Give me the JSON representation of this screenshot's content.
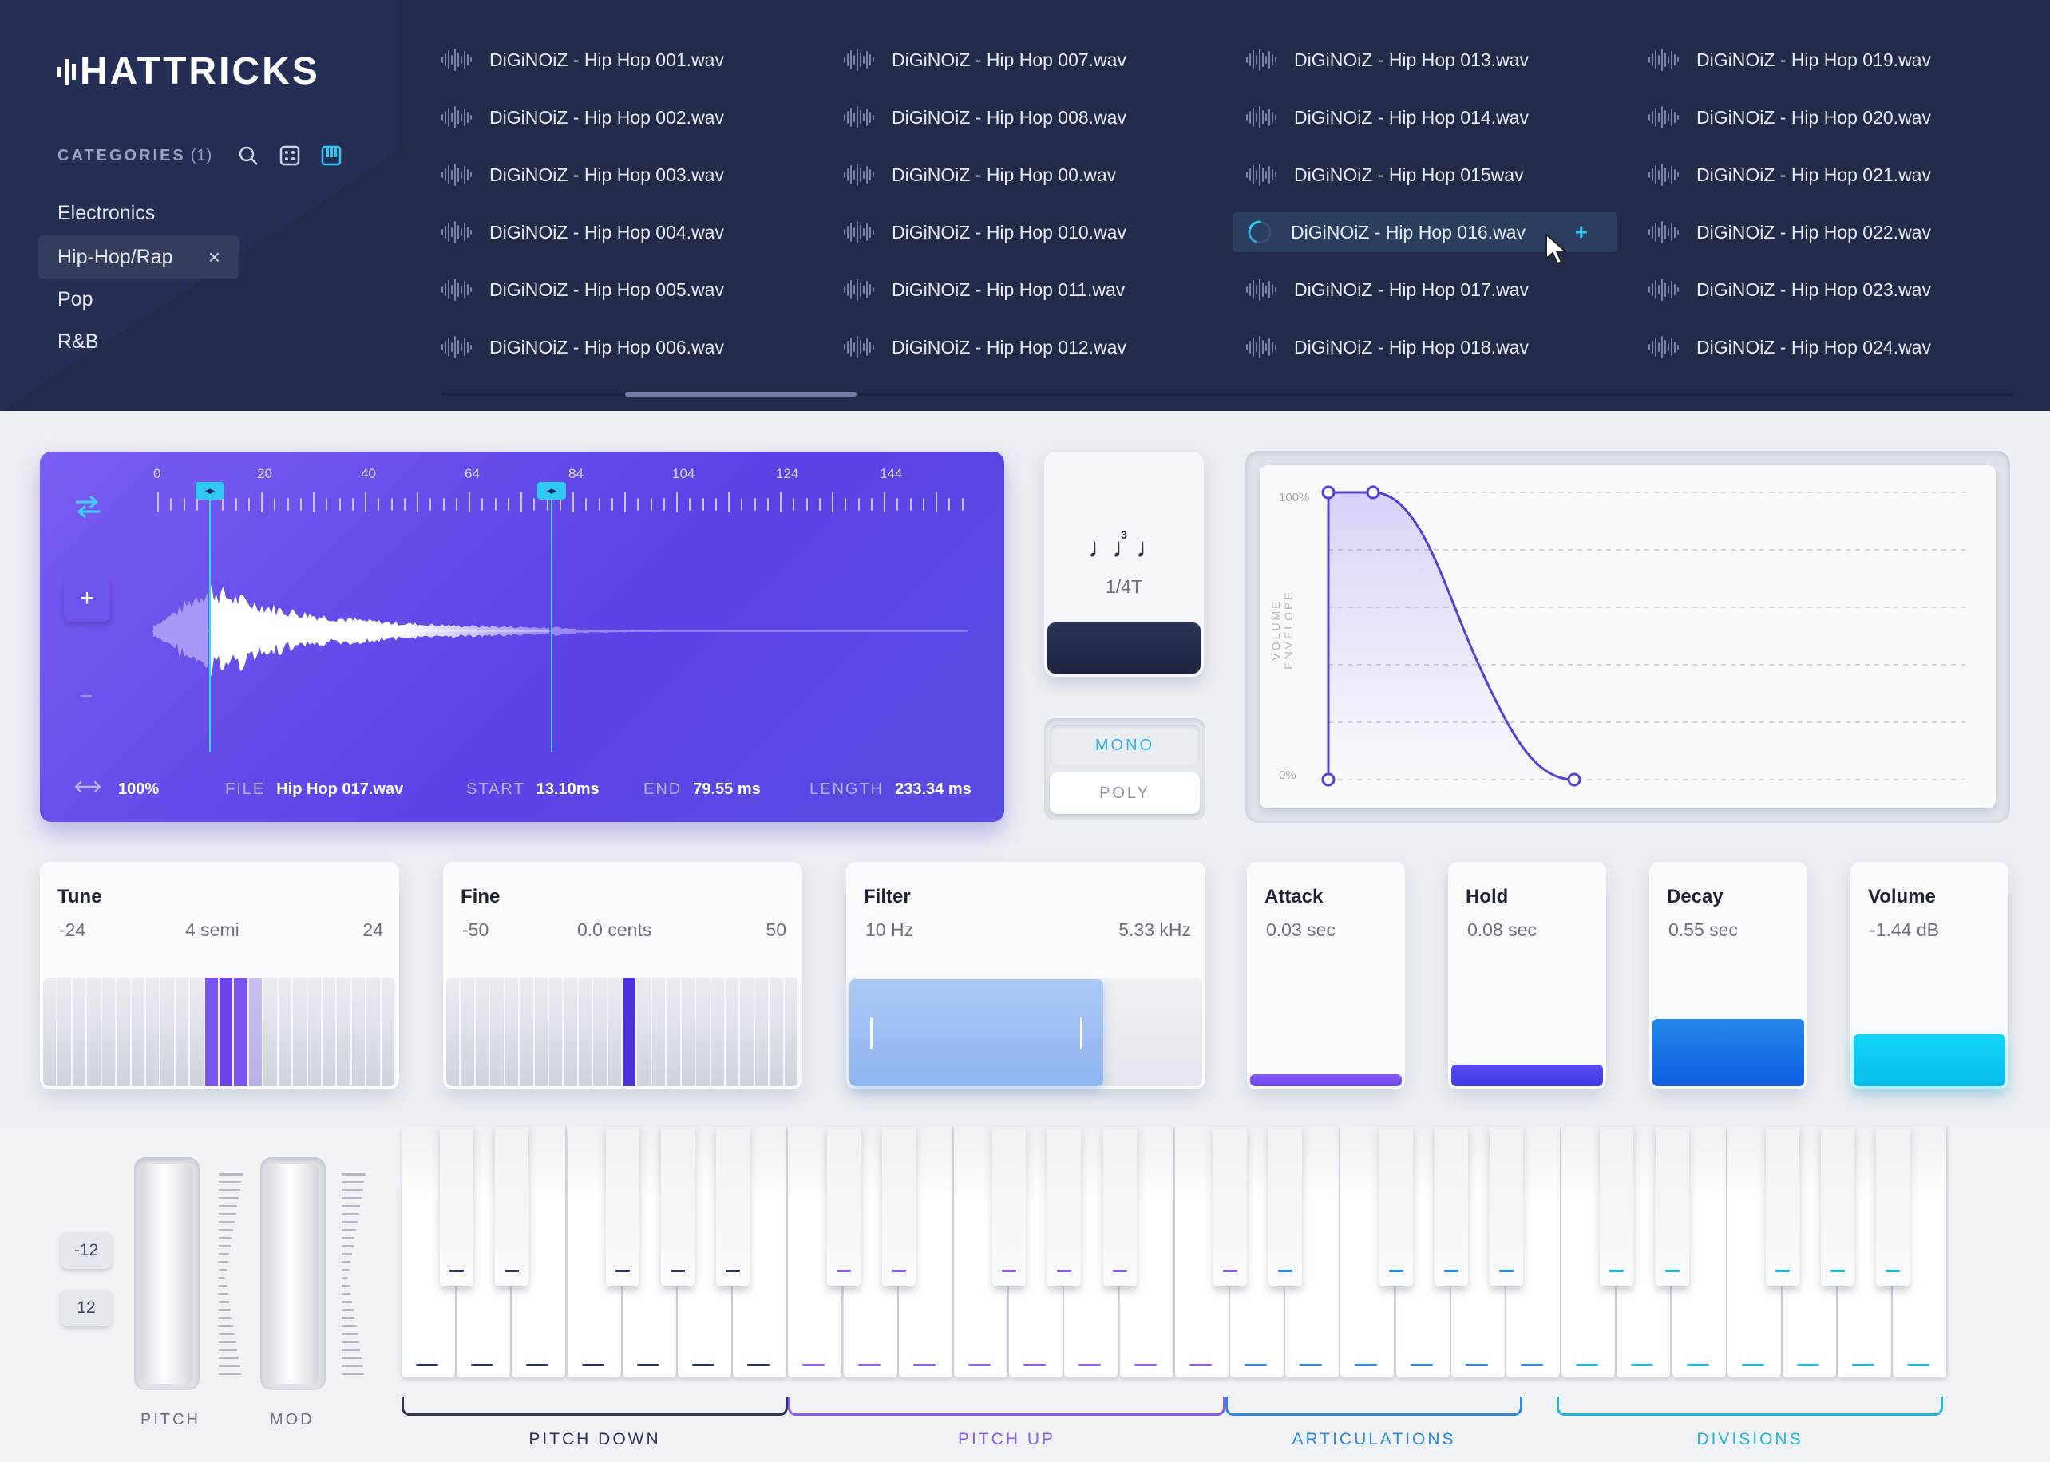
{
  "app": {
    "logo": "HATTRICKS"
  },
  "sidebar": {
    "categories_label": "CATEGORIES",
    "categories_count": "(1)",
    "items": [
      {
        "label": "Electronics"
      },
      {
        "label": "Hip-Hop/Rap",
        "selected": true
      },
      {
        "label": "Pop"
      },
      {
        "label": "R&B"
      }
    ],
    "remove_glyph": "×"
  },
  "files": {
    "columns": [
      [
        "DiGiNOiZ - Hip Hop 001.wav",
        "DiGiNOiZ - Hip Hop 002.wav",
        "DiGiNOiZ - Hip Hop 003.wav",
        "DiGiNOiZ - Hip Hop 004.wav",
        "DiGiNOiZ - Hip Hop 005.wav",
        "DiGiNOiZ - Hip Hop 006.wav"
      ],
      [
        "DiGiNOiZ - Hip Hop 007.wav",
        "DiGiNOiZ - Hip Hop 008.wav",
        "DiGiNOiZ - Hip Hop 00.wav",
        "DiGiNOiZ - Hip Hop 010.wav",
        "DiGiNOiZ - Hip Hop 011.wav",
        "DiGiNOiZ - Hip Hop 012.wav"
      ],
      [
        "DiGiNOiZ - Hip Hop 013.wav",
        "DiGiNOiZ - Hip Hop 014.wav",
        "DiGiNOiZ - Hip Hop 015wav",
        "DiGiNOiZ - Hip Hop 016.wav",
        "DiGiNOiZ - Hip Hop 017.wav",
        "DiGiNOiZ - Hip Hop 018.wav"
      ],
      [
        "DiGiNOiZ - Hip Hop 019.wav",
        "DiGiNOiZ - Hip Hop 020.wav",
        "DiGiNOiZ - Hip Hop 021.wav",
        "DiGiNOiZ - Hip Hop 022.wav",
        "DiGiNOiZ - Hip Hop 023.wav",
        "DiGiNOiZ - Hip Hop 024.wav"
      ]
    ],
    "loading_file": "DiGiNOiZ - Hip Hop 016.wav",
    "add_glyph": "+"
  },
  "waveform": {
    "ruler": [
      "0",
      "20",
      "40",
      "64",
      "84",
      "104",
      "124",
      "144"
    ],
    "zoom": "100%",
    "file_label": "FILE",
    "file": "Hip Hop 017.wav",
    "start_label": "START",
    "start": "13.10ms",
    "end_label": "END",
    "end": "79.55 ms",
    "length_label": "LENGTH",
    "length": "233.34 ms",
    "zoom_in": "+",
    "zoom_out": "−",
    "accent": "#5b43e6"
  },
  "note": {
    "symbol": "♩♩♩",
    "tuplet": "3",
    "value": "1/4T"
  },
  "voice_mode": {
    "mono": "MONO",
    "poly": "POLY",
    "selected": "MONO"
  },
  "envelope": {
    "axis_label": "VOLUME ENVELOPE",
    "top": "100%",
    "bottom": "0%"
  },
  "params": {
    "tune": {
      "name": "Tune",
      "min": "-24",
      "value": "4 semi",
      "max": "24"
    },
    "fine": {
      "name": "Fine",
      "min": "-50",
      "value": "0.0 cents",
      "max": "50"
    },
    "filter": {
      "name": "Filter",
      "min": "10 Hz",
      "max": "5.33 kHz"
    },
    "attack": {
      "name": "Attack",
      "value": "0.03 sec",
      "level": 0.11
    },
    "hold": {
      "name": "Hold",
      "value": "0.08 sec",
      "level": 0.2
    },
    "decay": {
      "name": "Decay",
      "value": "0.55 sec",
      "level": 0.62
    },
    "volume": {
      "name": "Volume",
      "value": "-1.44 dB",
      "level": 0.48
    }
  },
  "keyboard": {
    "octave_down": "-12",
    "octave_up": "12",
    "pitch_label": "PITCH",
    "mod_label": "MOD",
    "groups": [
      {
        "label": "PITCH DOWN",
        "color": "#2c3452"
      },
      {
        "label": "PITCH UP",
        "color": "#8a5cf0"
      },
      {
        "label": "ARTICULATIONS",
        "color": "#2d86e0"
      },
      {
        "label": "DIVISIONS",
        "color": "#1fb6d9"
      }
    ]
  }
}
